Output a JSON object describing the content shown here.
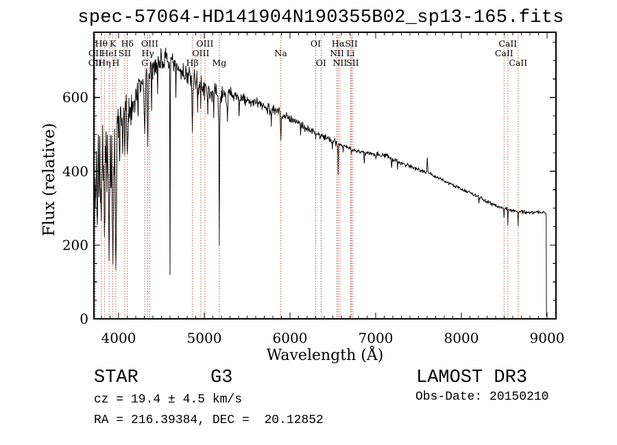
{
  "title": "spec-57064-HD141904N190355B02_sp13-165.fits",
  "footer": {
    "object_type": "STAR",
    "subclass": "G3",
    "cz_text": "cz = 19.4 ± 4.5 km/s",
    "radec_text": "RA = 216.39384, DEC =  20.12852",
    "survey": "LAMOST DR3",
    "obs_date_text": "Obs-Date: 20150210"
  },
  "colors": {
    "background": "#ffffff",
    "spectrum": "#000000",
    "marker_line": "#a63a2c",
    "axis": "#000000",
    "text": "#000000"
  },
  "chart_data": {
    "type": "line",
    "title": "spec-57064-HD141904N190355B02_sp13-165.fits",
    "xlabel": "Wavelength (Å)",
    "ylabel": "Flux (relative)",
    "xlim": [
      3712,
      9104
    ],
    "ylim": [
      0,
      777
    ],
    "grid": false,
    "x_major_ticks": [
      4000,
      5000,
      6000,
      7000,
      8000,
      9000
    ],
    "x_minor_step": 100,
    "y_major_ticks": [
      0,
      200,
      400,
      600
    ],
    "y_minor_step": 50,
    "spectral_line_markers": [
      {
        "label": "OII",
        "wavelength": 3726,
        "row": 3
      },
      {
        "label": "OII",
        "wavelength": 3729,
        "row": 2
      },
      {
        "label": "Hθ",
        "wavelength": 3798,
        "row": 1
      },
      {
        "label": "Hη",
        "wavelength": 3835,
        "row": 3
      },
      {
        "label": "HeI",
        "wavelength": 3889,
        "row": 2
      },
      {
        "label": "K",
        "wavelength": 3933,
        "row": 1
      },
      {
        "label": "H",
        "wavelength": 3968,
        "row": 3
      },
      {
        "label": "SII",
        "wavelength": 4072,
        "row": 2
      },
      {
        "label": "Hδ",
        "wavelength": 4102,
        "row": 1
      },
      {
        "label": "G",
        "wavelength": 4305,
        "row": 3
      },
      {
        "label": "Hγ",
        "wavelength": 4340,
        "row": 2
      },
      {
        "label": "OIII",
        "wavelength": 4363,
        "row": 1
      },
      {
        "label": "Hβ",
        "wavelength": 4861,
        "row": 3
      },
      {
        "label": "OIII",
        "wavelength": 4959,
        "row": 2
      },
      {
        "label": "OIII",
        "wavelength": 5007,
        "row": 1
      },
      {
        "label": "Mg",
        "wavelength": 5175,
        "row": 3
      },
      {
        "label": "Na",
        "wavelength": 5893,
        "row": 2
      },
      {
        "label": "OI",
        "wavelength": 6300,
        "row": 1
      },
      {
        "label": "OI",
        "wavelength": 6363,
        "row": 3
      },
      {
        "label": "NII",
        "wavelength": 6548,
        "row": 2
      },
      {
        "label": "Hα",
        "wavelength": 6563,
        "row": 1
      },
      {
        "label": "NII",
        "wavelength": 6583,
        "row": 3
      },
      {
        "label": "Li",
        "wavelength": 6707,
        "row": 2
      },
      {
        "label": "SII",
        "wavelength": 6716,
        "row": 1
      },
      {
        "label": "SII",
        "wavelength": 6731,
        "row": 3
      },
      {
        "label": "CaII",
        "wavelength": 8498,
        "row": 2
      },
      {
        "label": "CaII",
        "wavelength": 8542,
        "row": 1
      },
      {
        "label": "CaII",
        "wavelength": 8662,
        "row": 3
      }
    ],
    "spectrum": {
      "wavelength_range": [
        3712,
        8993
      ],
      "sample_step": 5,
      "continuum": [
        [
          3712,
          6
        ],
        [
          3713,
          380
        ],
        [
          3722,
          430
        ],
        [
          3740,
          425
        ],
        [
          3780,
          452
        ],
        [
          3830,
          476
        ],
        [
          3880,
          495
        ],
        [
          3930,
          500
        ],
        [
          3970,
          506
        ],
        [
          4000,
          522
        ],
        [
          4060,
          548
        ],
        [
          4120,
          572
        ],
        [
          4150,
          580
        ],
        [
          4200,
          605
        ],
        [
          4260,
          632
        ],
        [
          4340,
          660
        ],
        [
          4400,
          682
        ],
        [
          4460,
          700
        ],
        [
          4520,
          703
        ],
        [
          4600,
          690
        ],
        [
          4700,
          676
        ],
        [
          4800,
          662
        ],
        [
          4900,
          648
        ],
        [
          5000,
          627
        ],
        [
          5100,
          618
        ],
        [
          5200,
          610
        ],
        [
          5300,
          606
        ],
        [
          5400,
          600
        ],
        [
          5500,
          592
        ],
        [
          5600,
          585
        ],
        [
          5700,
          577
        ],
        [
          5800,
          568
        ],
        [
          5900,
          556
        ],
        [
          6000,
          545
        ],
        [
          6100,
          532
        ],
        [
          6200,
          515
        ],
        [
          6300,
          503
        ],
        [
          6400,
          494
        ],
        [
          6500,
          484
        ],
        [
          6600,
          472
        ],
        [
          6700,
          462
        ],
        [
          6800,
          453
        ],
        [
          6900,
          450
        ],
        [
          7000,
          448
        ],
        [
          7100,
          444
        ],
        [
          7200,
          434
        ],
        [
          7300,
          424
        ],
        [
          7400,
          414
        ],
        [
          7500,
          406
        ],
        [
          7600,
          398
        ],
        [
          7700,
          385
        ],
        [
          7800,
          374
        ],
        [
          7900,
          362
        ],
        [
          8000,
          352
        ],
        [
          8100,
          342
        ],
        [
          8200,
          330
        ],
        [
          8300,
          318
        ],
        [
          8400,
          308
        ],
        [
          8500,
          299
        ],
        [
          8600,
          294
        ],
        [
          8700,
          291
        ],
        [
          8800,
          288
        ],
        [
          8900,
          290
        ],
        [
          8970,
          289
        ],
        [
          8988,
          286
        ],
        [
          8990,
          272
        ],
        [
          8991,
          160
        ],
        [
          8993,
          7
        ]
      ],
      "absorption_features": [
        [
          3727,
          300,
          22
        ],
        [
          3752,
          255,
          18
        ],
        [
          3772,
          330,
          14
        ],
        [
          3798,
          265,
          22
        ],
        [
          3820,
          375,
          12
        ],
        [
          3835,
          222,
          22
        ],
        [
          3862,
          345,
          14
        ],
        [
          3889,
          158,
          26
        ],
        [
          3912,
          355,
          12
        ],
        [
          3933,
          148,
          28
        ],
        [
          3968,
          133,
          30
        ],
        [
          4012,
          428,
          14
        ],
        [
          4047,
          448,
          12
        ],
        [
          4072,
          443,
          14
        ],
        [
          4102,
          448,
          26
        ],
        [
          4144,
          525,
          10
        ],
        [
          4227,
          550,
          10
        ],
        [
          4305,
          502,
          26
        ],
        [
          4340,
          468,
          22
        ],
        [
          4385,
          565,
          12
        ],
        [
          4455,
          610,
          10
        ],
        [
          4600,
          120,
          9
        ],
        [
          4668,
          600,
          9
        ],
        [
          4861,
          505,
          20
        ],
        [
          4922,
          560,
          10
        ],
        [
          4958,
          570,
          10
        ],
        [
          5041,
          555,
          10
        ],
        [
          5110,
          545,
          10
        ],
        [
          5172,
          515,
          32
        ],
        [
          5175,
          200,
          11
        ],
        [
          5270,
          535,
          14
        ],
        [
          5406,
          550,
          10
        ],
        [
          5782,
          522,
          8
        ],
        [
          5893,
          484,
          16
        ],
        [
          6124,
          498,
          8
        ],
        [
          6300,
          486,
          7
        ],
        [
          6495,
          460,
          8
        ],
        [
          6563,
          390,
          12
        ],
        [
          6620,
          452,
          7
        ],
        [
          6716,
          446,
          7
        ],
        [
          6867,
          422,
          13
        ],
        [
          7002,
          433,
          8
        ],
        [
          7186,
          410,
          16
        ],
        [
          7255,
          405,
          9
        ],
        [
          8205,
          314,
          9
        ],
        [
          8498,
          274,
          9
        ],
        [
          8542,
          255,
          9
        ],
        [
          8662,
          251,
          9
        ]
      ],
      "emission_features": [
        [
          7602,
          437,
          16
        ]
      ],
      "noise_segments": [
        [
          3712,
          4000,
          105,
          1.6
        ],
        [
          4000,
          4200,
          55,
          1.3
        ],
        [
          4200,
          4420,
          45,
          1.2
        ],
        [
          4420,
          4700,
          38,
          1.0
        ],
        [
          4700,
          4900,
          33,
          1.1
        ],
        [
          4900,
          5350,
          29,
          1.2
        ],
        [
          5350,
          5900,
          18,
          1.2
        ],
        [
          5900,
          6560,
          12,
          1.2
        ],
        [
          6560,
          7600,
          8,
          1.1
        ],
        [
          7600,
          8994,
          6,
          1.0
        ]
      ]
    }
  }
}
